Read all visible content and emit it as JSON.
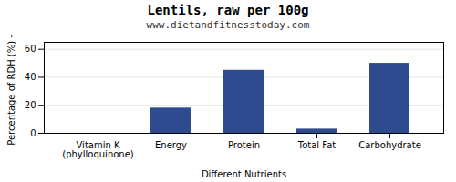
{
  "chart_data": {
    "type": "bar",
    "title": "Lentils, raw per 100g",
    "subtitle": "www.dietandfitnesstoday.com",
    "xlabel": "Different Nutrients",
    "ylabel": "Percentage of RDH (%)",
    "categories": [
      "Vitamin K (phylloquinone)",
      "Energy",
      "Protein",
      "Total Fat",
      "Carbohydrate"
    ],
    "values": [
      0,
      18,
      45,
      3,
      50
    ],
    "color": "#2e4b8f",
    "ylim": [
      0,
      65
    ],
    "yticks": [
      0,
      20,
      40,
      60
    ],
    "grid": true
  }
}
